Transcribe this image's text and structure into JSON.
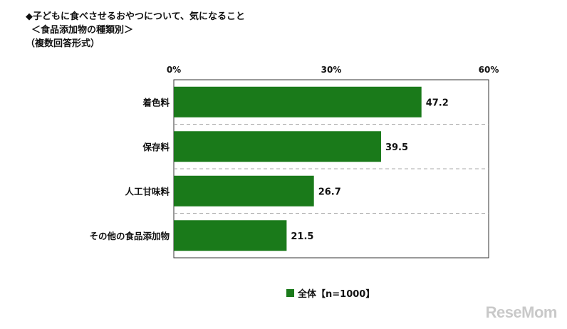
{
  "title_lines": [
    "◆子どもに食べさせるおやつについて、気になること",
    "＜食品添加物の種類別＞",
    "（複数回答形式）"
  ],
  "chart_data": {
    "type": "bar",
    "orientation": "horizontal",
    "categories": [
      "着色料",
      "保存料",
      "人工甘味料",
      "その他の食品添加物"
    ],
    "series": [
      {
        "name": "全体【n=1000】",
        "values": [
          47.2,
          39.5,
          26.7,
          21.5
        ],
        "color": "#1a7a1a"
      }
    ],
    "data_labels": [
      "47.2",
      "39.5",
      "26.7",
      "21.5"
    ],
    "xlim": [
      0,
      60
    ],
    "x_ticks": [
      0,
      30,
      60
    ],
    "x_tick_labels": [
      "0%",
      "30%",
      "60%"
    ],
    "gridlines": "dashed between categories",
    "legend_position": "bottom-center"
  },
  "legend": {
    "label": "全体【n=1000】",
    "color": "#1a7a1a"
  },
  "watermark": "ReseMom"
}
